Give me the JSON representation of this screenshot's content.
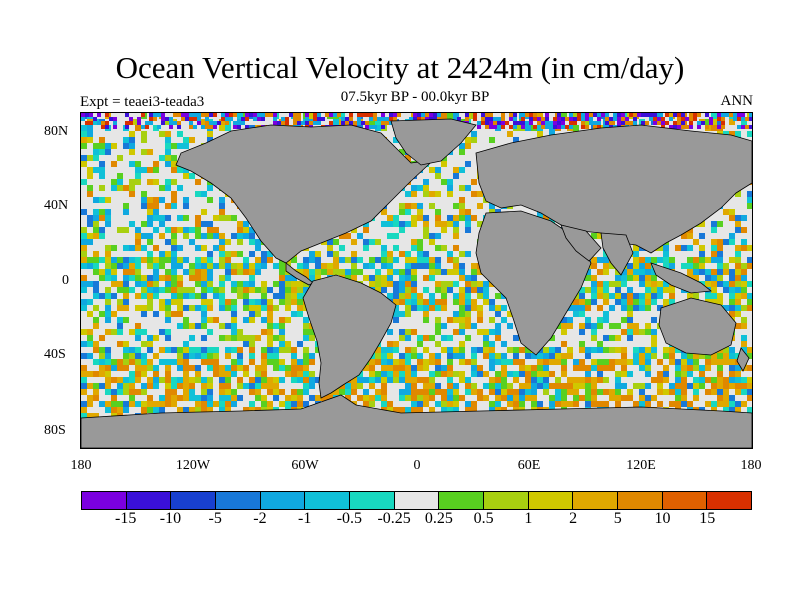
{
  "title": "Ocean Vertical Velocity at 2424m (in cm/day)",
  "subtitle": "07.5kyr BP - 00.0kyr BP",
  "experiment": "Expt = teaei3-teada3",
  "season": "ANN",
  "map": {
    "projection": "cylindrical-equidistant",
    "land_color": "#999999",
    "lon_range": [
      -180,
      180
    ],
    "lat_range": [
      -90,
      90
    ],
    "lat_labels": [
      "80N",
      "40N",
      "0",
      "40S",
      "80S"
    ],
    "lon_labels": [
      "180",
      "120W",
      "60W",
      "0",
      "60E",
      "120E",
      "180"
    ]
  },
  "colorbar": {
    "colors": [
      "#7b00e0",
      "#3a10d8",
      "#1840d0",
      "#1878d8",
      "#10a8e0",
      "#10c0d8",
      "#18d8c0",
      "#e6e6e6",
      "#58d020",
      "#a8d010",
      "#d0c800",
      "#e0a800",
      "#e08800",
      "#e06000",
      "#d83000"
    ],
    "labels": [
      "-15",
      "-10",
      "-5",
      "-2",
      "-1",
      "-0.5",
      "-0.25",
      "0.25",
      "0.5",
      "1",
      "2",
      "5",
      "10",
      "15"
    ]
  }
}
